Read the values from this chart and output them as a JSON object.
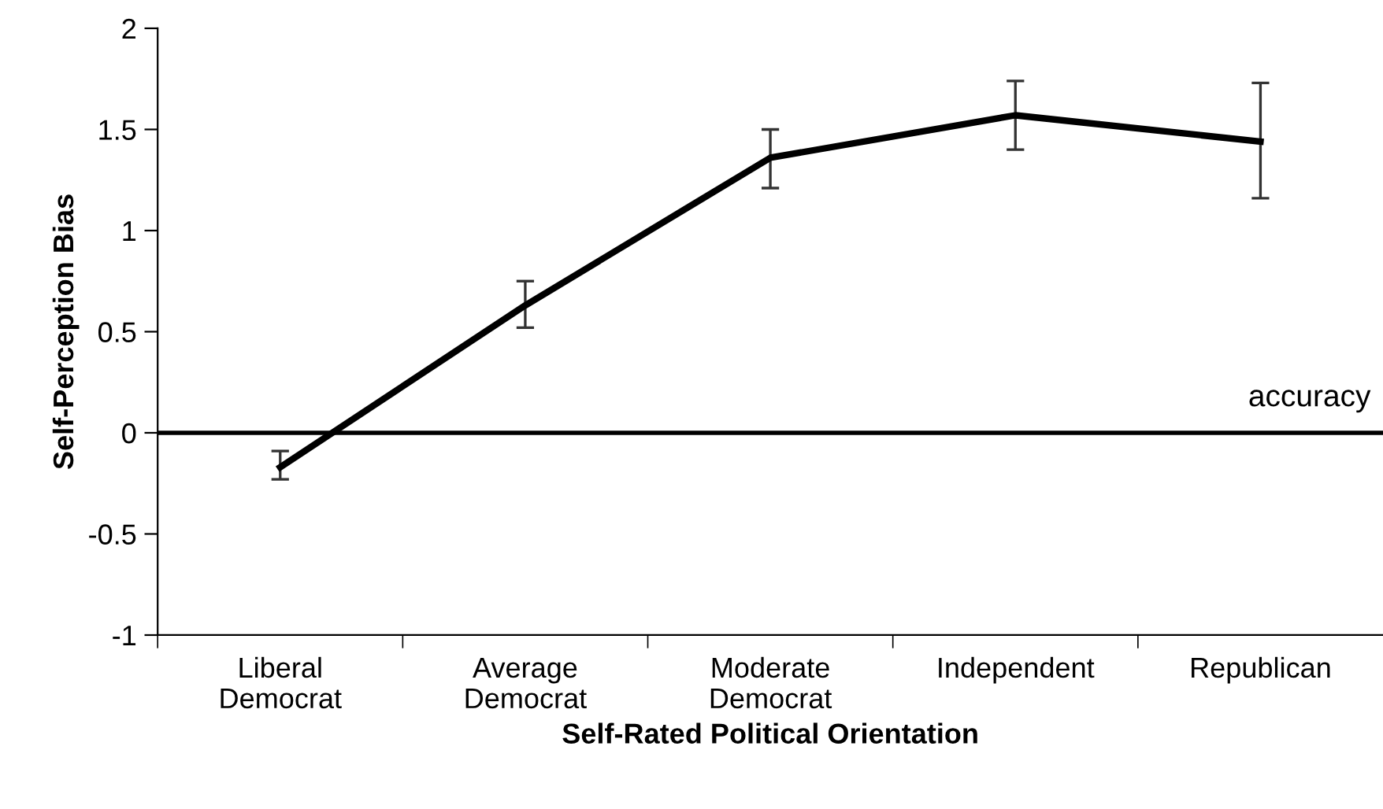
{
  "chart_data": {
    "type": "line",
    "xlabel": "Self-Rated Political Orientation",
    "ylabel": "Self-Perception Bias",
    "categories": [
      "Liberal\nDemocrat",
      "Average\nDemocrat",
      "Moderate\nDemocrat",
      "Independent",
      "Republican"
    ],
    "series": [
      {
        "color": "#000000",
        "values": [
          -0.17,
          0.63,
          1.36,
          1.57,
          1.44
        ],
        "errors": [
          [
            -0.23,
            -0.09
          ],
          [
            0.52,
            0.75
          ],
          [
            1.21,
            1.5
          ],
          [
            1.4,
            1.74
          ],
          [
            1.16,
            1.73
          ]
        ]
      }
    ],
    "ylim": [
      -1,
      2
    ],
    "yticks": [
      -1,
      -0.5,
      0,
      0.5,
      1,
      1.5,
      2
    ],
    "ref_lines": [
      {
        "axis": "y",
        "value": 0,
        "label": "accuracy",
        "color": "#000000"
      }
    ],
    "grid": false,
    "legend": false,
    "marker": "none",
    "line_style": "solid"
  }
}
